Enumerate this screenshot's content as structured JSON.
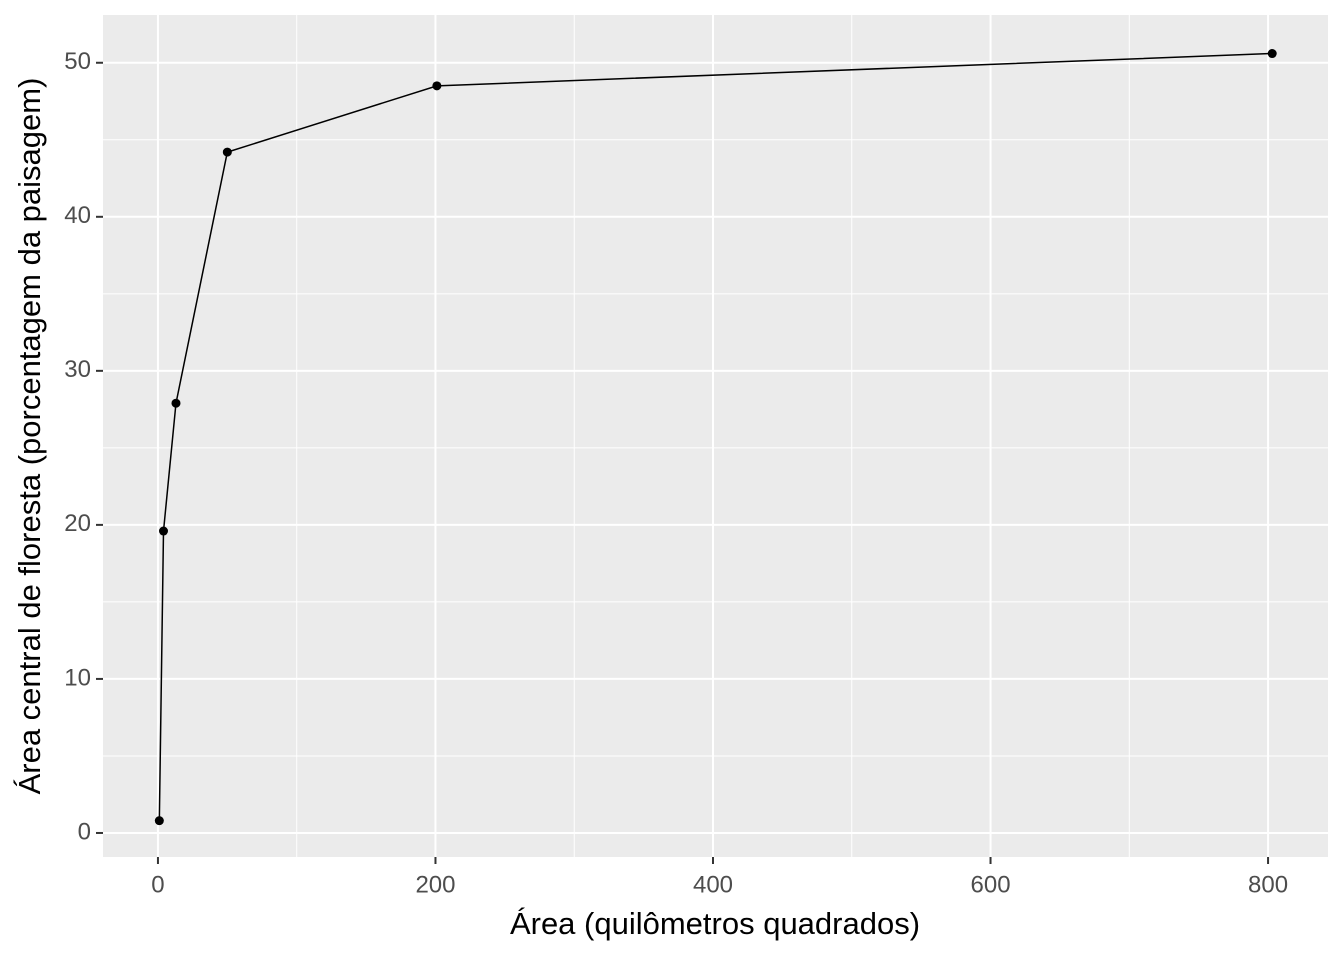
{
  "chart_data": {
    "type": "line",
    "x_label": "Área (quilômetros quadrados)",
    "y_label": "Área central de floresta (porcentagem da paisagem)",
    "x": [
      1,
      4,
      13,
      50,
      201,
      803
    ],
    "series": [
      {
        "color": "#000000",
        "values": [
          0.8,
          19.6,
          27.9,
          44.2,
          48.5,
          50.6
        ]
      }
    ],
    "xlim": [
      -39.6,
      843.2
    ],
    "ylim": [
      -1.56,
      53.1
    ],
    "xticks": [
      0,
      200,
      400,
      600,
      800
    ],
    "yticks": [
      0,
      10,
      20,
      30,
      40,
      50
    ],
    "grid": true
  }
}
